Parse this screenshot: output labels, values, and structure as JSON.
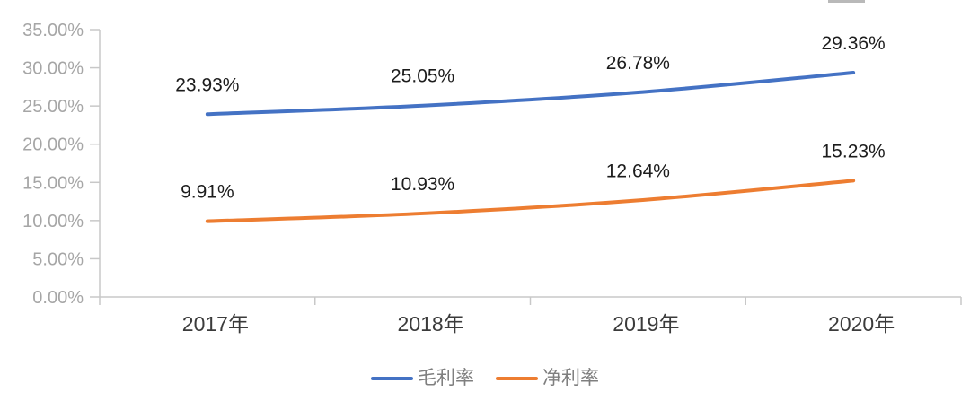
{
  "chart_data": {
    "type": "line",
    "title": "",
    "categories": [
      "2017年",
      "2018年",
      "2019年",
      "2020年"
    ],
    "series": [
      {
        "key": "gross-margin",
        "name": "毛利率",
        "values": [
          23.93,
          25.05,
          26.78,
          29.36
        ],
        "labels": [
          "23.93%",
          "25.05%",
          "26.78%",
          "29.36%"
        ],
        "color": "#4472C4"
      },
      {
        "key": "net-margin",
        "name": "净利率",
        "values": [
          9.91,
          10.93,
          12.64,
          15.23
        ],
        "labels": [
          "9.91%",
          "10.93%",
          "12.64%",
          "15.23%"
        ],
        "color": "#ED7D31"
      }
    ],
    "y_axis": {
      "min": 0,
      "max": 35,
      "step": 5,
      "tick_labels": [
        "0.00%",
        "5.00%",
        "10.00%",
        "15.00%",
        "20.00%",
        "25.00%",
        "30.00%",
        "35.00%"
      ]
    },
    "x_axis": {
      "tick_labels": [
        "2017年",
        "2018年",
        "2019年",
        "2020年"
      ]
    },
    "grid": false,
    "legend": {
      "position": "bottom"
    },
    "smoothed_lines": true
  },
  "colors": {
    "background": "#FFFFFF",
    "axis_line": "#C8C8C8",
    "y_tick_label": "#A6A6A6",
    "x_tick_label": "#3B3B3B",
    "data_label": "#1C1C1C",
    "legend_label": "#7F7F7F",
    "top_fragment": "#B9B9B9"
  }
}
